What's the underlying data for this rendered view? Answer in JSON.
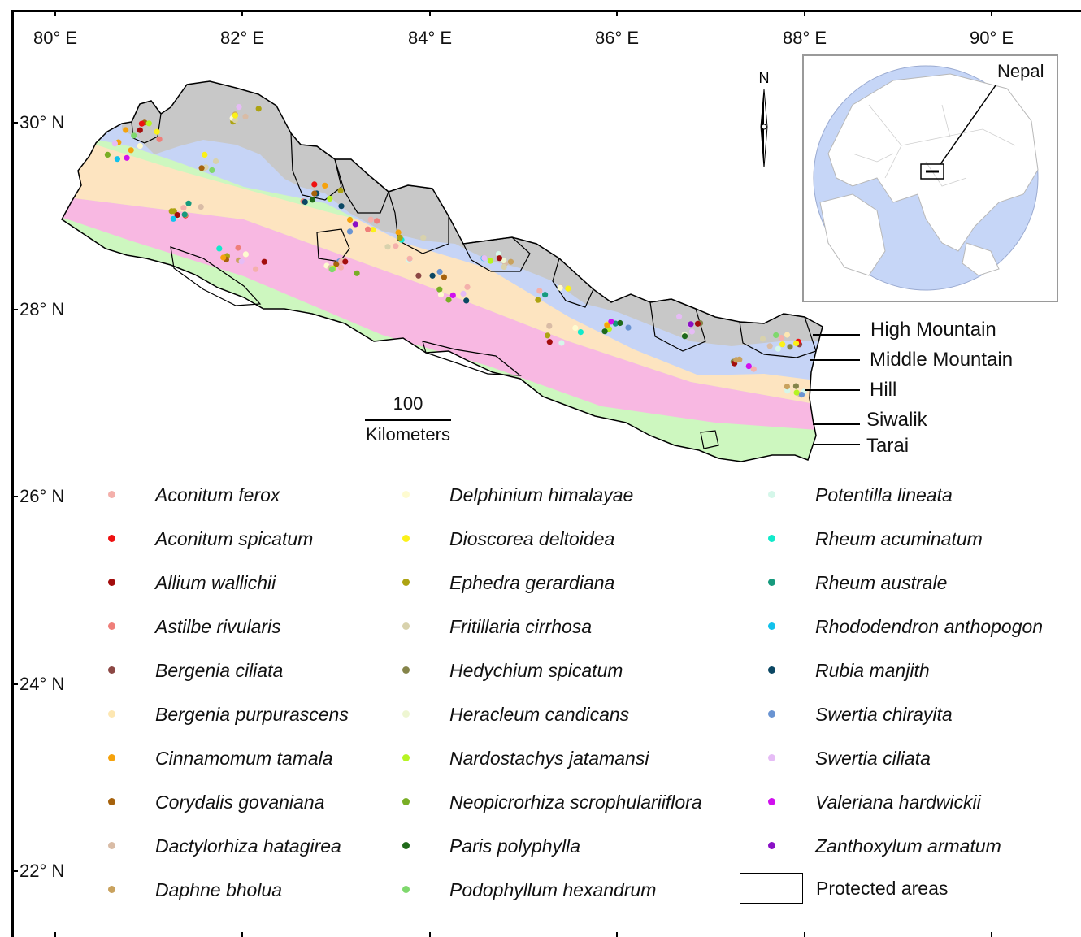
{
  "axes": {
    "longitudes": [
      "80° E",
      "82° E",
      "84° E",
      "86° E",
      "88° E",
      "90° E"
    ],
    "latitudes": [
      "30° N",
      "28° N",
      "26° N",
      "24° N",
      "22° N"
    ]
  },
  "inset": {
    "label": "Nepal",
    "ocean_color": "#ffffff",
    "land_color": "#c6d6f7"
  },
  "north_arrow": {
    "label": "N"
  },
  "scale_bar": {
    "value": "100",
    "unit": "Kilometers"
  },
  "zones": [
    {
      "name": "High Mountain",
      "color": "#c8c8c8"
    },
    {
      "name": "Middle Mountain",
      "color": "#c6d4f6"
    },
    {
      "name": "Hill",
      "color": "#fde4c0"
    },
    {
      "name": "Siwalik",
      "color": "#f8b8e2"
    },
    {
      "name": "Tarai",
      "color": "#cdf7bf"
    }
  ],
  "legend": {
    "species": [
      {
        "name": "Aconitum ferox",
        "color": "#f4b0ab"
      },
      {
        "name": "Aconitum spicatum",
        "color": "#ee1111"
      },
      {
        "name": "Allium wallichii",
        "color": "#a30d0d"
      },
      {
        "name": "Astilbe rivularis",
        "color": "#ef7f7a"
      },
      {
        "name": "Bergenia ciliata",
        "color": "#8c4845"
      },
      {
        "name": "Bergenia purpurascens",
        "color": "#fde7b2"
      },
      {
        "name": "Cinnamomum tamala",
        "color": "#f5a20c"
      },
      {
        "name": "Corydalis govaniana",
        "color": "#a6620c"
      },
      {
        "name": "Dactylorhiza hatagirea",
        "color": "#d9bca6"
      },
      {
        "name": "Daphne bholua",
        "color": "#c9a25e"
      },
      {
        "name": "Delphinium himalayae",
        "color": "#fefbd0"
      },
      {
        "name": "Dioscorea deltoidea",
        "color": "#fbf118"
      },
      {
        "name": "Ephedra gerardiana",
        "color": "#ada312"
      },
      {
        "name": "Fritillaria cirrhosa",
        "color": "#d8d2ad"
      },
      {
        "name": "Hedychium spicatum",
        "color": "#85844a"
      },
      {
        "name": "Heracleum candicans",
        "color": "#eef6d2"
      },
      {
        "name": "Nardostachys jatamansi",
        "color": "#b6f422"
      },
      {
        "name": "Neopicrorhiza scrophulariiflora",
        "color": "#79ae25"
      },
      {
        "name": "Paris polyphylla",
        "color": "#1f6a1a"
      },
      {
        "name": "Podophyllum hexandrum",
        "color": "#7fd86d"
      },
      {
        "name": "Potentilla lineata",
        "color": "#d5f7ea"
      },
      {
        "name": "Rheum acuminatum",
        "color": "#11eacb"
      },
      {
        "name": "Rheum australe",
        "color": "#169a7d"
      },
      {
        "name": "Rhododendron anthopogon",
        "color": "#12c2ec"
      },
      {
        "name": "Rubia manjith",
        "color": "#0b4763"
      },
      {
        "name": "Swertia chirayita",
        "color": "#6a94d2"
      },
      {
        "name": "Swertia ciliata",
        "color": "#e6bcf6"
      },
      {
        "name": "Valeriana hardwickii",
        "color": "#d010ee"
      },
      {
        "name": "Zanthoxylum armatum",
        "color": "#8a10c6"
      }
    ],
    "protected_areas": "Protected areas"
  }
}
